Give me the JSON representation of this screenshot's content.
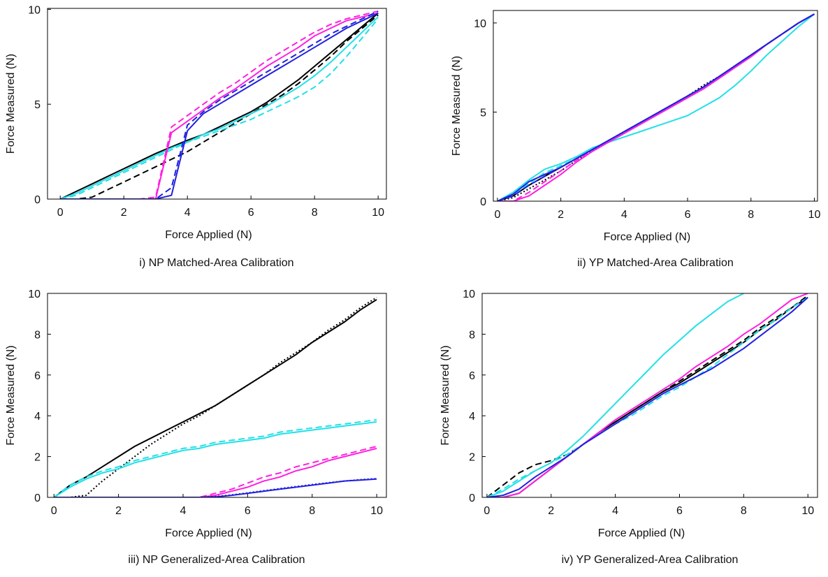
{
  "chart_data": [
    {
      "type": "line",
      "caption": "i) NP Matched-Area Calibration",
      "xlabel": "Force Applied (N)",
      "ylabel": "Force Measured (N)",
      "x": [
        0,
        0.5,
        1,
        1.5,
        2,
        2.5,
        3,
        3.5,
        4,
        4.5,
        5,
        5.5,
        6,
        6.5,
        7,
        7.5,
        8,
        8.5,
        9,
        9.5,
        10
      ],
      "xlim": [
        -0.4,
        10.26
      ],
      "ylim": [
        0,
        10.05
      ],
      "xticks": [
        0,
        2,
        4,
        6,
        8,
        10
      ],
      "yticks": [
        0,
        5,
        10
      ],
      "series": [
        {
          "color": "#000000",
          "dash": "solid",
          "values": [
            0,
            0.4,
            0.8,
            1.2,
            1.6,
            2.0,
            2.4,
            2.75,
            3.1,
            3.4,
            3.8,
            4.2,
            4.6,
            5.1,
            5.7,
            6.3,
            7.0,
            7.7,
            8.4,
            9.1,
            9.8
          ]
        },
        {
          "color": "#000000",
          "dash": "dashed",
          "values": [
            0,
            0,
            0.1,
            0.5,
            0.9,
            1.3,
            1.7,
            2.1,
            2.5,
            3.0,
            3.5,
            4.0,
            4.5,
            5.0,
            5.5,
            6.1,
            6.8,
            7.5,
            8.3,
            9.0,
            9.7
          ]
        },
        {
          "color": "#22e0e8",
          "dash": "solid",
          "values": [
            0,
            0.3,
            0.7,
            1.1,
            1.5,
            1.9,
            2.3,
            2.7,
            3.0,
            3.4,
            3.7,
            4.1,
            4.5,
            4.9,
            5.4,
            5.9,
            6.5,
            7.2,
            8.0,
            8.8,
            9.6
          ]
        },
        {
          "color": "#22e0e8",
          "dash": "dashed",
          "values": [
            0,
            0.2,
            0.6,
            1.0,
            1.4,
            1.8,
            2.2,
            2.6,
            3.0,
            3.3,
            3.6,
            3.9,
            4.2,
            4.6,
            5.0,
            5.4,
            5.9,
            6.6,
            7.5,
            8.5,
            9.5
          ]
        },
        {
          "color": "#ff20e0",
          "dash": "solid",
          "values": [
            0,
            0,
            0,
            0,
            0,
            0,
            0,
            3.5,
            4.1,
            4.7,
            5.3,
            5.8,
            6.4,
            7.0,
            7.5,
            8.0,
            8.6,
            9.0,
            9.4,
            9.6,
            9.8
          ]
        },
        {
          "color": "#ff20e0",
          "dash": "dashed",
          "values": [
            0,
            0,
            0,
            0,
            0,
            0,
            0.1,
            3.8,
            4.4,
            5.0,
            5.6,
            6.1,
            6.7,
            7.3,
            7.8,
            8.3,
            8.8,
            9.2,
            9.5,
            9.7,
            9.9
          ]
        },
        {
          "color": "#2020e0",
          "dash": "solid",
          "values": [
            0,
            0,
            0,
            0,
            0,
            0,
            0,
            0.2,
            3.6,
            4.5,
            5.0,
            5.5,
            6.0,
            6.5,
            7.0,
            7.5,
            8.0,
            8.5,
            9.0,
            9.4,
            9.8
          ]
        },
        {
          "color": "#2020e0",
          "dash": "dashed",
          "values": [
            0,
            0,
            0,
            0,
            0,
            0,
            0,
            0.6,
            3.9,
            4.6,
            5.2,
            5.7,
            6.2,
            6.7,
            7.2,
            7.7,
            8.2,
            8.7,
            9.1,
            9.5,
            9.9
          ]
        }
      ]
    },
    {
      "type": "line",
      "caption": "ii) YP Matched-Area Calibration",
      "xlabel": "Force Applied (N)",
      "ylabel": "Force Measured (N)",
      "x": [
        0,
        0.5,
        1,
        1.5,
        2,
        2.5,
        3,
        3.5,
        4,
        4.5,
        5,
        5.5,
        6,
        6.5,
        7,
        7.5,
        8,
        8.5,
        9,
        9.5,
        10
      ],
      "xlim": [
        -0.13,
        10.1
      ],
      "ylim": [
        0,
        10.7
      ],
      "xticks": [
        0,
        2,
        4,
        6,
        8,
        10
      ],
      "yticks": [
        0,
        5,
        10
      ],
      "series": [
        {
          "color": "#000000",
          "dash": "solid",
          "values": [
            0,
            0.3,
            0.9,
            1.4,
            1.9,
            2.4,
            2.9,
            3.4,
            3.9,
            4.4,
            4.9,
            5.4,
            5.9,
            6.4,
            7.0,
            7.6,
            8.2,
            8.8,
            9.4,
            10.0,
            10.5
          ]
        },
        {
          "color": "#000000",
          "dash": "dotted",
          "values": [
            0,
            0.2,
            0.7,
            1.2,
            1.7,
            2.3,
            2.8,
            3.4,
            3.9,
            4.4,
            4.9,
            5.4,
            5.9,
            6.5,
            7.0,
            7.6,
            8.2,
            8.8,
            9.4,
            10.0,
            10.5
          ]
        },
        {
          "color": "#22e0e8",
          "dash": "solid",
          "values": [
            0,
            0.5,
            1.2,
            1.8,
            2.1,
            2.5,
            3.0,
            3.3,
            3.6,
            3.9,
            4.2,
            4.5,
            4.8,
            5.3,
            5.8,
            6.5,
            7.3,
            8.2,
            9.0,
            9.8,
            10.5
          ]
        },
        {
          "color": "#22e0e8",
          "dash": "dashed",
          "values": [
            0,
            0.3,
            1.0,
            1.6,
            2.0,
            2.4,
            2.9,
            3.4,
            3.9,
            4.4,
            4.9,
            5.4,
            5.9,
            6.4,
            7.0,
            7.6,
            8.2,
            8.8,
            9.4,
            10.0,
            10.5
          ]
        },
        {
          "color": "#ff20e0",
          "dash": "solid",
          "values": [
            0,
            0,
            0.3,
            0.9,
            1.5,
            2.2,
            2.8,
            3.3,
            3.8,
            4.3,
            4.8,
            5.3,
            5.8,
            6.3,
            6.9,
            7.5,
            8.1,
            8.8,
            9.4,
            10.0,
            10.5
          ]
        },
        {
          "color": "#ff20e0",
          "dash": "dashed",
          "values": [
            0,
            0,
            0.5,
            1.1,
            1.7,
            2.3,
            2.9,
            3.4,
            3.9,
            4.4,
            4.9,
            5.4,
            5.9,
            6.4,
            7.0,
            7.6,
            8.2,
            8.8,
            9.4,
            10.0,
            10.5
          ]
        },
        {
          "color": "#2020e0",
          "dash": "solid",
          "values": [
            0,
            0.4,
            1.1,
            1.5,
            1.9,
            2.4,
            2.9,
            3.4,
            3.9,
            4.4,
            4.9,
            5.4,
            5.9,
            6.4,
            7.0,
            7.6,
            8.2,
            8.8,
            9.4,
            10.0,
            10.5
          ]
        },
        {
          "color": "#2020e0",
          "dash": "dashed",
          "values": [
            0,
            0.3,
            0.9,
            1.4,
            1.9,
            2.4,
            2.9,
            3.4,
            3.9,
            4.4,
            4.9,
            5.4,
            5.9,
            6.4,
            7.0,
            7.6,
            8.2,
            8.8,
            9.4,
            10.0,
            10.5
          ]
        }
      ]
    },
    {
      "type": "line",
      "caption": "iii) NP Generalized-Area Calibration",
      "xlabel": "Force Applied (N)",
      "ylabel": "Force Measured (N)",
      "x": [
        0,
        0.5,
        1,
        1.5,
        2,
        2.5,
        3,
        3.5,
        4,
        4.5,
        5,
        5.5,
        6,
        6.5,
        7,
        7.5,
        8,
        8.5,
        9,
        9.5,
        10
      ],
      "xlim": [
        -0.2,
        10.3
      ],
      "ylim": [
        0,
        10
      ],
      "xticks": [
        0,
        2,
        4,
        6,
        8,
        10
      ],
      "yticks": [
        0,
        2,
        4,
        6,
        8,
        10
      ],
      "series": [
        {
          "color": "#000000",
          "dash": "solid",
          "values": [
            0,
            0.6,
            1.0,
            1.5,
            2.0,
            2.5,
            2.9,
            3.3,
            3.7,
            4.1,
            4.5,
            5.0,
            5.5,
            6.0,
            6.5,
            7.0,
            7.6,
            8.1,
            8.6,
            9.2,
            9.7
          ]
        },
        {
          "color": "#000000",
          "dash": "dotted",
          "values": [
            0,
            0,
            0.1,
            0.8,
            1.4,
            2.0,
            2.6,
            3.1,
            3.6,
            4.0,
            4.5,
            5.0,
            5.5,
            6.0,
            6.6,
            7.1,
            7.6,
            8.2,
            8.7,
            9.3,
            9.8
          ]
        },
        {
          "color": "#22e0e8",
          "dash": "solid",
          "values": [
            0,
            0.5,
            0.9,
            1.2,
            1.4,
            1.7,
            1.9,
            2.1,
            2.3,
            2.4,
            2.6,
            2.7,
            2.8,
            2.9,
            3.1,
            3.2,
            3.3,
            3.4,
            3.5,
            3.6,
            3.7
          ]
        },
        {
          "color": "#22e0e8",
          "dash": "dashed",
          "values": [
            0,
            0.6,
            1.0,
            1.3,
            1.5,
            1.8,
            2.0,
            2.2,
            2.4,
            2.5,
            2.7,
            2.8,
            2.9,
            3.0,
            3.2,
            3.3,
            3.4,
            3.5,
            3.6,
            3.7,
            3.8
          ]
        },
        {
          "color": "#ff20e0",
          "dash": "solid",
          "values": [
            0,
            0,
            0,
            0,
            0,
            0,
            0,
            0,
            0,
            0,
            0.1,
            0.3,
            0.5,
            0.8,
            1.0,
            1.3,
            1.5,
            1.8,
            2.0,
            2.2,
            2.4
          ]
        },
        {
          "color": "#ff20e0",
          "dash": "dashed",
          "values": [
            0,
            0,
            0,
            0,
            0,
            0,
            0,
            0,
            0,
            0,
            0.2,
            0.4,
            0.7,
            1.0,
            1.2,
            1.5,
            1.7,
            1.9,
            2.1,
            2.3,
            2.5
          ]
        },
        {
          "color": "#2020e0",
          "dash": "solid",
          "values": [
            0,
            0,
            0,
            0,
            0,
            0,
            0,
            0,
            0,
            0,
            0.02,
            0.1,
            0.2,
            0.3,
            0.4,
            0.5,
            0.6,
            0.7,
            0.8,
            0.85,
            0.9
          ]
        },
        {
          "color": "#2020e0",
          "dash": "dotted",
          "values": [
            0,
            0,
            0,
            0,
            0,
            0,
            0,
            0,
            0,
            0,
            0.04,
            0.12,
            0.22,
            0.33,
            0.43,
            0.53,
            0.63,
            0.72,
            0.8,
            0.87,
            0.92
          ]
        }
      ]
    },
    {
      "type": "line",
      "caption": "iv) YP Generalized-Area Calibration",
      "xlabel": "Force Applied (N)",
      "ylabel": "Force Measured (N)",
      "x": [
        0,
        0.5,
        1,
        1.5,
        2,
        2.5,
        3,
        3.5,
        4,
        4.5,
        5,
        5.5,
        6,
        6.5,
        7,
        7.5,
        8,
        8.5,
        9,
        9.5,
        10
      ],
      "xlim": [
        -0.15,
        10.3
      ],
      "ylim": [
        0,
        10
      ],
      "xticks": [
        0,
        2,
        4,
        6,
        8,
        10
      ],
      "yticks": [
        0,
        2,
        4,
        6,
        8,
        10
      ],
      "series": [
        {
          "color": "#000000",
          "dash": "solid",
          "values": [
            0,
            0,
            0.2,
            0.8,
            1.4,
            2.0,
            2.6,
            3.2,
            3.7,
            4.2,
            4.7,
            5.2,
            5.6,
            6.1,
            6.6,
            7.1,
            7.6,
            8.2,
            8.7,
            9.3,
            9.8
          ]
        },
        {
          "color": "#000000",
          "dash": "dashed",
          "values": [
            0,
            0.6,
            1.2,
            1.6,
            1.8,
            2.1,
            2.6,
            3.2,
            3.7,
            4.2,
            4.7,
            5.2,
            5.7,
            6.2,
            6.7,
            7.2,
            7.7,
            8.3,
            8.8,
            9.3,
            9.9
          ]
        },
        {
          "color": "#22e0e8",
          "dash": "solid",
          "values": [
            0,
            0.3,
            0.8,
            1.3,
            1.7,
            2.3,
            3.0,
            3.8,
            4.6,
            5.4,
            6.2,
            7.0,
            7.7,
            8.4,
            9.0,
            9.6,
            10.0,
            null,
            null,
            null,
            null
          ]
        },
        {
          "color": "#22e0e8",
          "dash": "dashed",
          "values": [
            0,
            0.4,
            0.9,
            1.3,
            1.7,
            2.1,
            2.6,
            3.1,
            3.6,
            4.0,
            4.5,
            5.0,
            5.4,
            5.9,
            6.4,
            7.0,
            7.6,
            8.2,
            8.7,
            9.3,
            9.8
          ]
        },
        {
          "color": "#ff20e0",
          "dash": "solid",
          "values": [
            0,
            0,
            0.2,
            0.8,
            1.4,
            2.0,
            2.6,
            3.2,
            3.8,
            4.3,
            4.8,
            5.3,
            5.8,
            6.4,
            6.9,
            7.4,
            8.0,
            8.5,
            9.1,
            9.7,
            10.0
          ]
        },
        {
          "color": "#2020e0",
          "dash": "solid",
          "values": [
            0,
            0.1,
            0.4,
            1.0,
            1.5,
            2.0,
            2.6,
            3.1,
            3.6,
            4.1,
            4.6,
            5.1,
            5.5,
            5.9,
            6.3,
            6.8,
            7.3,
            7.9,
            8.5,
            9.1,
            9.8
          ]
        }
      ]
    }
  ]
}
